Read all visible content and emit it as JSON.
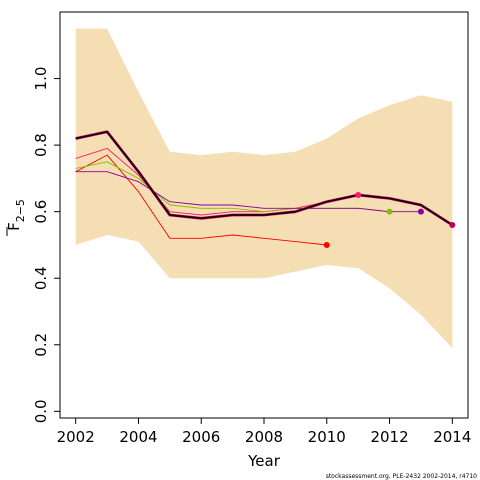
{
  "chart_data": {
    "type": "line",
    "xlabel": "Year",
    "ylabel": "F",
    "ylabel_subscript": "2−5",
    "xlim": [
      2001.5,
      2014.5
    ],
    "ylim": [
      -0.02,
      1.2
    ],
    "x_ticks": [
      2002,
      2004,
      2006,
      2008,
      2010,
      2012,
      2014
    ],
    "y_ticks": [
      0.0,
      0.2,
      0.4,
      0.6,
      0.8,
      1.0
    ],
    "x_tick_labels": [
      "2002",
      "2004",
      "2006",
      "2008",
      "2010",
      "2012",
      "2014"
    ],
    "y_tick_labels": [
      "0.0",
      "0.2",
      "0.4",
      "0.6",
      "0.8",
      "1.0"
    ],
    "grid": false,
    "band": {
      "color": "#f5deb3",
      "x": [
        2002,
        2003,
        2004,
        2005,
        2006,
        2007,
        2008,
        2009,
        2010,
        2011,
        2012,
        2013,
        2014
      ],
      "lower": [
        0.5,
        0.53,
        0.51,
        0.4,
        0.4,
        0.4,
        0.4,
        0.42,
        0.44,
        0.43,
        0.37,
        0.29,
        0.19
      ],
      "upper": [
        1.15,
        1.15,
        0.96,
        0.78,
        0.77,
        0.78,
        0.77,
        0.78,
        0.82,
        0.88,
        0.92,
        0.95,
        0.93
      ]
    },
    "series": [
      {
        "color": "#ff0000",
        "width": 0.9,
        "x": [
          2002,
          2003,
          2004,
          2005,
          2006,
          2007,
          2008,
          2009,
          2010
        ],
        "y": [
          0.72,
          0.77,
          0.66,
          0.52,
          0.52,
          0.53,
          0.52,
          0.51,
          0.5
        ],
        "end_marker": true
      },
      {
        "color": "#ff1a6a",
        "width": 0.9,
        "x": [
          2002,
          2003,
          2004,
          2005,
          2006,
          2007,
          2008,
          2009,
          2010,
          2011
        ],
        "y": [
          0.76,
          0.79,
          0.71,
          0.6,
          0.59,
          0.6,
          0.6,
          0.61,
          0.63,
          0.65
        ],
        "end_marker": true
      },
      {
        "color": "#80c000",
        "width": 0.9,
        "x": [
          2002,
          2003,
          2004,
          2005,
          2006,
          2007,
          2008,
          2009,
          2010,
          2011,
          2012
        ],
        "y": [
          0.73,
          0.75,
          0.7,
          0.62,
          0.61,
          0.61,
          0.6,
          0.61,
          0.61,
          0.61,
          0.6
        ],
        "end_marker": true
      },
      {
        "color": "#8b00a0",
        "width": 0.9,
        "x": [
          2002,
          2003,
          2004,
          2005,
          2006,
          2007,
          2008,
          2009,
          2010,
          2011,
          2012,
          2013
        ],
        "y": [
          0.72,
          0.72,
          0.69,
          0.63,
          0.62,
          0.62,
          0.61,
          0.61,
          0.61,
          0.61,
          0.6,
          0.6
        ],
        "end_marker": true
      },
      {
        "color": "#c0005a",
        "width": 2.8,
        "x": [
          2002,
          2003,
          2004,
          2005,
          2006,
          2007,
          2008,
          2009,
          2010,
          2011,
          2012,
          2013,
          2014
        ],
        "y": [
          0.82,
          0.84,
          0.72,
          0.59,
          0.58,
          0.59,
          0.59,
          0.6,
          0.63,
          0.65,
          0.64,
          0.62,
          0.56
        ],
        "end_marker": true
      },
      {
        "color": "#000000",
        "width": 1.5,
        "x": [
          2002,
          2003,
          2004,
          2005,
          2006,
          2007,
          2008,
          2009,
          2010,
          2011,
          2012,
          2013,
          2014
        ],
        "y": [
          0.82,
          0.84,
          0.72,
          0.59,
          0.58,
          0.59,
          0.59,
          0.6,
          0.63,
          0.65,
          0.64,
          0.62,
          0.56
        ],
        "end_marker": false
      }
    ]
  },
  "footer": "stockassessment.org, PLE-2432  2002-2014, r4710"
}
